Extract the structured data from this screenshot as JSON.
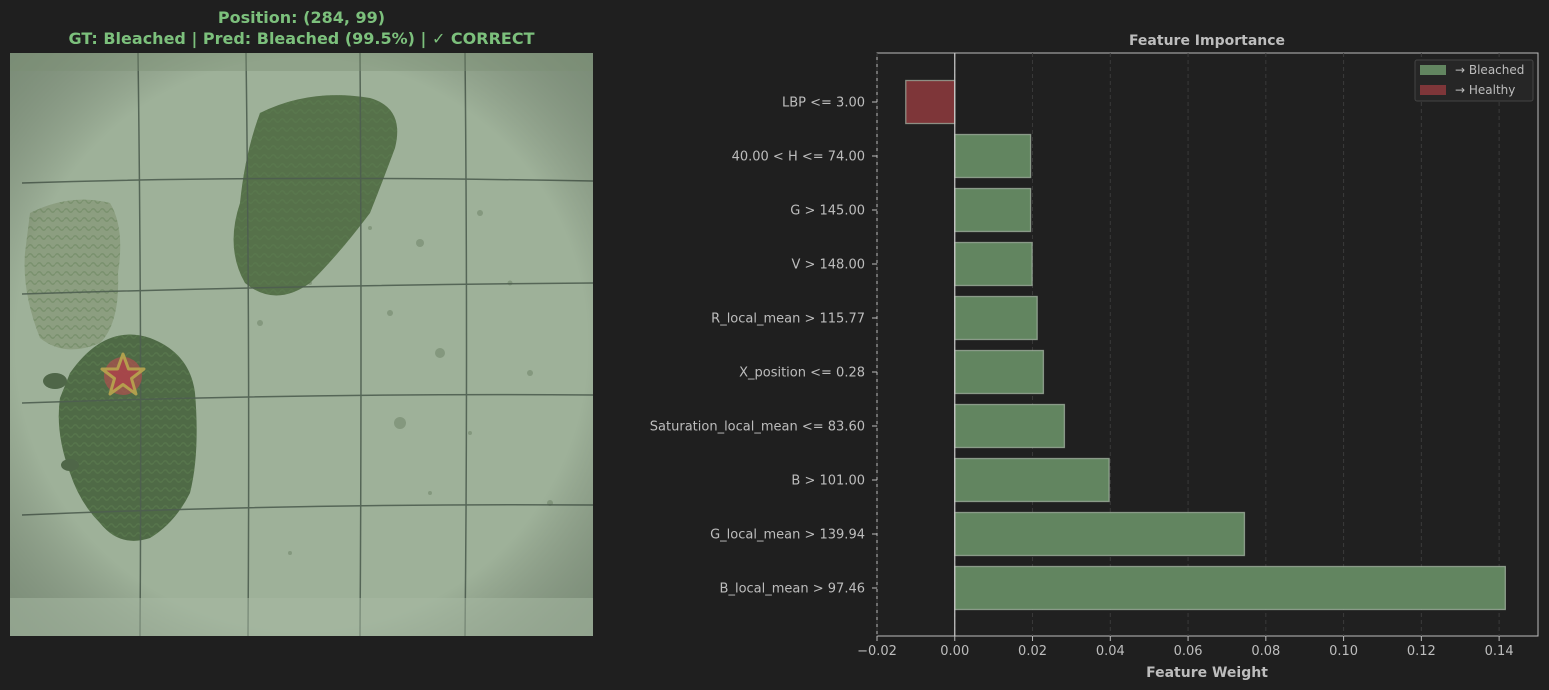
{
  "left": {
    "title_line1": "Position: (284, 99)",
    "title_line2": "GT: Bleached | Pred: Bleached (99.5%) | ✓ CORRECT",
    "marker_icon": "star-icon"
  },
  "colors": {
    "bleached": "#628560",
    "healthy": "#7e3639",
    "title": "#7cc07c",
    "text": "#bdbdbd",
    "background": "#1f1f1f",
    "plot_background": "#202020"
  },
  "chart_data": {
    "type": "bar",
    "orientation": "horizontal",
    "title": "Feature Importance",
    "xlabel": "Feature Weight",
    "ylabel": "",
    "xlim": [
      -0.02,
      0.15
    ],
    "xticks": [
      "−0.02",
      "0.00",
      "0.02",
      "0.04",
      "0.06",
      "0.08",
      "0.10",
      "0.12",
      "0.14"
    ],
    "xtick_values": [
      -0.02,
      0,
      0.02,
      0.04,
      0.06,
      0.08,
      0.1,
      0.12,
      0.14
    ],
    "grid": "vertical dashed",
    "legend_position": "top-right",
    "legend": [
      {
        "label": "→ Bleached",
        "color_key": "bleached"
      },
      {
        "label": "→ Healthy",
        "color_key": "healthy"
      }
    ],
    "categories": [
      "LBP <= 3.00",
      "40.00 < H <= 74.00",
      "G > 145.00",
      "V > 148.00",
      "R_local_mean > 115.77",
      "X_position <= 0.28",
      "Saturation_local_mean <= 83.60",
      "B > 101.00",
      "G_local_mean > 139.94",
      "B_local_mean > 97.46"
    ],
    "values": [
      -0.0126,
      0.0195,
      0.0195,
      0.0199,
      0.0212,
      0.0228,
      0.0282,
      0.0397,
      0.0745,
      0.1416
    ]
  }
}
